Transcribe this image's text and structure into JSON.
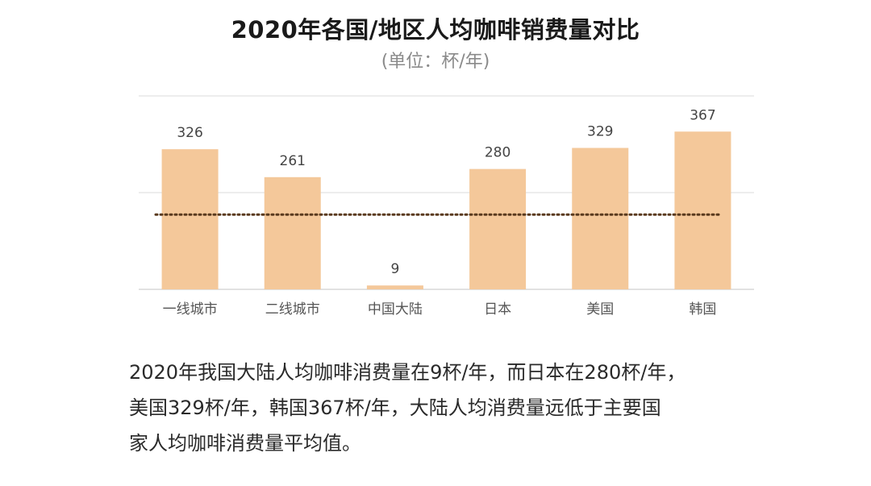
{
  "title": "2020年各国/地区人均咖啡销费量对比",
  "subtitle": "(单位：杯/年)",
  "chart_data": {
    "type": "bar",
    "title": "2020年各国/地区人均咖啡销费量对比",
    "subtitle": "(单位：杯/年)",
    "categories": [
      "一线城市",
      "二线城市",
      "中国大陆",
      "日本",
      "美国",
      "韩国"
    ],
    "values": [
      326,
      261,
      9,
      280,
      329,
      367
    ],
    "ylim": [
      0,
      450
    ],
    "reference_line": 174,
    "grid": true,
    "bar_color": "#F4C89A",
    "reference_line_color": "#5a3a1e"
  },
  "caption": {
    "lines": [
      "2020年我国大陆人均咖啡消费量在9杯/年，而日本在280杯/年，",
      "美国329杯/年，韩国367杯/年，大陆人均消费量远低于主要国",
      "家人均咖啡消费量平均值。"
    ]
  }
}
